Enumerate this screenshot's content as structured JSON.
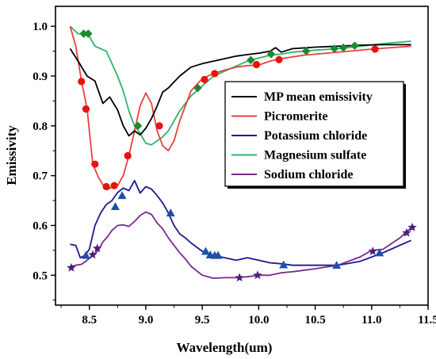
{
  "chart_data": {
    "type": "line",
    "xlabel": "Wavelength(um)",
    "ylabel": "Emissivity",
    "xlim": [
      8.2,
      11.5
    ],
    "ylim": [
      0.44,
      1.04
    ],
    "xticks": [
      "8.5",
      "9.0",
      "9.5",
      "10.0",
      "10.5",
      "11.0",
      "11.5"
    ],
    "yticks": [
      "0.5",
      "0.6",
      "0.7",
      "0.8",
      "0.9",
      "1.0"
    ],
    "legend": {
      "position": "upper-right, inside",
      "framed": true
    },
    "grid": false,
    "series": [
      {
        "name": "MP mean emissivity",
        "color": "#000000",
        "marker": "none",
        "x": [
          8.33,
          8.4,
          8.48,
          8.55,
          8.62,
          8.68,
          8.75,
          8.8,
          8.85,
          8.9,
          8.95,
          9.0,
          9.05,
          9.1,
          9.15,
          9.2,
          9.25,
          9.3,
          9.4,
          9.5,
          9.6,
          9.7,
          9.8,
          9.9,
          10.0,
          10.1,
          10.15,
          10.2,
          10.3,
          10.5,
          10.7,
          10.9,
          11.1,
          11.35
        ],
        "y": [
          0.955,
          0.93,
          0.9,
          0.89,
          0.845,
          0.858,
          0.832,
          0.8,
          0.78,
          0.79,
          0.782,
          0.795,
          0.815,
          0.84,
          0.868,
          0.876,
          0.888,
          0.9,
          0.918,
          0.925,
          0.93,
          0.935,
          0.94,
          0.943,
          0.946,
          0.95,
          0.957,
          0.948,
          0.955,
          0.958,
          0.96,
          0.962,
          0.963,
          0.963
        ]
      },
      {
        "name": "Picromerite",
        "color": "#e8413c",
        "marker": "circle",
        "marker_color": "#e8130f",
        "x": [
          8.33,
          8.38,
          8.43,
          8.48,
          8.53,
          8.58,
          8.63,
          8.66,
          8.7,
          8.75,
          8.8,
          8.85,
          8.9,
          8.95,
          9.0,
          9.05,
          9.1,
          9.15,
          9.2,
          9.25,
          9.3,
          9.4,
          9.5,
          9.6,
          9.7,
          9.8,
          9.9,
          10.0,
          10.1,
          10.2,
          10.4,
          10.6,
          10.8,
          11.0,
          11.35
        ],
        "y": [
          1.0,
          0.96,
          0.89,
          0.834,
          0.723,
          0.697,
          0.678,
          0.672,
          0.677,
          0.68,
          0.7,
          0.74,
          0.79,
          0.84,
          0.866,
          0.845,
          0.79,
          0.76,
          0.75,
          0.77,
          0.81,
          0.87,
          0.895,
          0.905,
          0.912,
          0.918,
          0.921,
          0.922,
          0.93,
          0.935,
          0.942,
          0.946,
          0.95,
          0.954,
          0.96
        ],
        "marked_points": [
          [
            8.43,
            0.889
          ],
          [
            8.47,
            0.834
          ],
          [
            8.55,
            0.723
          ],
          [
            8.65,
            0.678
          ],
          [
            8.72,
            0.68
          ],
          [
            8.84,
            0.74
          ],
          [
            9.12,
            0.8
          ],
          [
            9.52,
            0.893
          ],
          [
            9.61,
            0.905
          ],
          [
            9.98,
            0.923
          ],
          [
            10.18,
            0.933
          ],
          [
            11.03,
            0.954
          ]
        ]
      },
      {
        "name": "Potassium chloride",
        "color": "#1a1a94",
        "marker": "triangle",
        "marker_color": "#1e4fa8",
        "x": [
          8.33,
          8.38,
          8.42,
          8.46,
          8.5,
          8.55,
          8.6,
          8.65,
          8.7,
          8.75,
          8.8,
          8.85,
          8.9,
          8.95,
          9.0,
          9.05,
          9.1,
          9.15,
          9.2,
          9.25,
          9.3,
          9.35,
          9.4,
          9.5,
          9.6,
          9.7,
          9.8,
          9.9,
          10.0,
          10.1,
          10.2,
          10.3,
          10.5,
          10.7,
          10.9,
          11.1,
          11.35
        ],
        "y": [
          0.562,
          0.56,
          0.535,
          0.54,
          0.552,
          0.6,
          0.625,
          0.642,
          0.65,
          0.666,
          0.675,
          0.67,
          0.69,
          0.665,
          0.678,
          0.673,
          0.66,
          0.645,
          0.625,
          0.6,
          0.583,
          0.575,
          0.565,
          0.548,
          0.54,
          0.535,
          0.53,
          0.535,
          0.53,
          0.525,
          0.523,
          0.52,
          0.52,
          0.52,
          0.528,
          0.545,
          0.57
        ],
        "marked_points": [
          [
            8.47,
            0.54
          ],
          [
            8.73,
            0.638
          ],
          [
            8.79,
            0.66
          ],
          [
            9.22,
            0.625
          ],
          [
            9.53,
            0.548
          ],
          [
            9.57,
            0.541
          ],
          [
            9.61,
            0.54
          ],
          [
            9.64,
            0.54
          ],
          [
            10.22,
            0.521
          ],
          [
            10.69,
            0.52
          ],
          [
            11.07,
            0.545
          ]
        ]
      },
      {
        "name": "Magnesium sulfate",
        "color": "#2fb36a",
        "marker": "diamond",
        "marker_color": "#1d8a2e",
        "x": [
          8.33,
          8.4,
          8.45,
          8.5,
          8.55,
          8.6,
          8.65,
          8.7,
          8.75,
          8.8,
          8.85,
          8.9,
          8.95,
          9.0,
          9.05,
          9.1,
          9.15,
          9.2,
          9.3,
          9.4,
          9.5,
          9.6,
          9.7,
          9.8,
          9.9,
          10.0,
          10.1,
          10.2,
          10.3,
          10.5,
          10.7,
          10.9,
          11.1,
          11.35
        ],
        "y": [
          1.0,
          0.985,
          0.985,
          0.98,
          0.96,
          0.955,
          0.95,
          0.925,
          0.9,
          0.87,
          0.83,
          0.8,
          0.785,
          0.765,
          0.762,
          0.77,
          0.778,
          0.79,
          0.83,
          0.86,
          0.88,
          0.9,
          0.91,
          0.92,
          0.93,
          0.936,
          0.942,
          0.944,
          0.948,
          0.952,
          0.955,
          0.96,
          0.965,
          0.97
        ],
        "marked_points": [
          [
            8.45,
            0.985
          ],
          [
            8.49,
            0.985
          ],
          [
            8.93,
            0.8
          ],
          [
            9.46,
            0.876
          ],
          [
            9.93,
            0.932
          ],
          [
            10.11,
            0.944
          ],
          [
            10.42,
            0.95
          ],
          [
            10.67,
            0.955
          ],
          [
            10.75,
            0.957
          ],
          [
            10.85,
            0.961
          ]
        ]
      },
      {
        "name": "Sodium chloride",
        "color": "#7a2a8c",
        "marker": "star",
        "marker_color": "#4d1e7a",
        "x": [
          8.33,
          8.38,
          8.43,
          8.48,
          8.53,
          8.58,
          8.62,
          8.66,
          8.7,
          8.75,
          8.8,
          8.85,
          8.9,
          8.95,
          9.0,
          9.05,
          9.1,
          9.15,
          9.2,
          9.25,
          9.3,
          9.35,
          9.4,
          9.5,
          9.6,
          9.7,
          9.8,
          9.9,
          10.0,
          10.1,
          10.2,
          10.3,
          10.5,
          10.7,
          10.9,
          11.0,
          11.1,
          11.25,
          11.35
        ],
        "y": [
          0.517,
          0.52,
          0.522,
          0.53,
          0.54,
          0.55,
          0.567,
          0.577,
          0.59,
          0.6,
          0.601,
          0.598,
          0.608,
          0.62,
          0.627,
          0.622,
          0.605,
          0.593,
          0.575,
          0.56,
          0.545,
          0.533,
          0.518,
          0.5,
          0.494,
          0.495,
          0.495,
          0.497,
          0.5,
          0.5,
          0.505,
          0.507,
          0.513,
          0.52,
          0.537,
          0.55,
          0.552,
          0.575,
          0.595
        ],
        "marked_points": [
          [
            8.34,
            0.515
          ],
          [
            8.53,
            0.541
          ],
          [
            8.57,
            0.554
          ],
          [
            9.83,
            0.495
          ],
          [
            9.99,
            0.5
          ],
          [
            11.01,
            0.548
          ],
          [
            11.31,
            0.585
          ],
          [
            11.36,
            0.596
          ]
        ]
      }
    ]
  }
}
